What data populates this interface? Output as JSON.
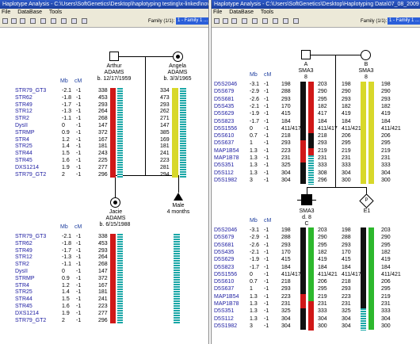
{
  "left": {
    "title": "Haplotype Analysis - C:\\Users\\SoftGenetics\\Desktop\\haplotyping testing\\x-linked\\nov_ped",
    "menu": [
      "File",
      "DataBase",
      "Tools"
    ],
    "family_label": "Family (1/1):",
    "family_value": "1 - Family 1 ...",
    "col_mb": "Mb",
    "col_cm": "cM",
    "father": {
      "name": "Arthur",
      "surname": "ADAMS",
      "dob": "b. 12/17/1959"
    },
    "mother": {
      "name": "Angela",
      "surname": "ADAMS",
      "dob": "b. 3/3/1965"
    },
    "child1": {
      "name": "Jacie",
      "surname": "ADAMS",
      "dob": "b. 6/15/1988"
    },
    "child2": {
      "line1": "Male",
      "line2": "4 months"
    },
    "markers": [
      {
        "name": "STR79_GT3",
        "mb": "-2.1",
        "cm": "-1",
        "f": "338",
        "m": "334",
        "k": "338"
      },
      {
        "name": "STR62",
        "mb": "-1.8",
        "cm": "-1",
        "f": "453",
        "m": "473",
        "k": "453"
      },
      {
        "name": "STR49",
        "mb": "-1.7",
        "cm": "-1",
        "f": "293",
        "m": "293",
        "k": "293"
      },
      {
        "name": "STR12",
        "mb": "-1.3",
        "cm": "-1",
        "f": "264",
        "m": "262",
        "k": "264"
      },
      {
        "name": "STR2",
        "mb": "-1.1",
        "cm": "-1",
        "f": "268",
        "m": "271",
        "k": "268"
      },
      {
        "name": "DysII",
        "mb": "0",
        "cm": "-1",
        "f": "147",
        "m": "147",
        "k": "147"
      },
      {
        "name": "STRMP",
        "mb": "0.9",
        "cm": "-1",
        "f": "372",
        "m": "385",
        "k": "372"
      },
      {
        "name": "STR4",
        "mb": "1.2",
        "cm": "-1",
        "f": "167",
        "m": "169",
        "k": "167"
      },
      {
        "name": "STR25",
        "mb": "1.4",
        "cm": "-1",
        "f": "181",
        "m": "181",
        "k": "181"
      },
      {
        "name": "STR44",
        "mb": "1.5",
        "cm": "-1",
        "f": "243",
        "m": "241",
        "k": "241"
      },
      {
        "name": "STR45",
        "mb": "1.6",
        "cm": "-1",
        "f": "225",
        "m": "223",
        "k": "223"
      },
      {
        "name": "DXS1214",
        "mb": "1.9",
        "cm": "-1",
        "f": "277",
        "m": "281",
        "k": "277"
      },
      {
        "name": "STR79_GT2",
        "mb": "2",
        "cm": "-1",
        "f": "296",
        "m": "294",
        "k": "296"
      }
    ]
  },
  "right": {
    "title": "Haplotype Analysis - C:\\Users\\SoftGenetics\\Desktop\\Haplotyping Data\\07_08_2009 haplotypi",
    "menu": [
      "File",
      "DataBase",
      "Tools"
    ],
    "family_label": "Family (1/1):",
    "family_value": "1 - Family 1 ...",
    "col_mb": "Mb",
    "col_cm": "cM",
    "parentA": {
      "id": "A",
      "label": "SMA3",
      "sub": "8"
    },
    "parentB": {
      "id": "B",
      "label": "SMA3",
      "sub": "8"
    },
    "childC": {
      "id": "C",
      "label": "SMA3",
      "sub": "d. 8"
    },
    "childE": {
      "id": "E1"
    },
    "markers": [
      {
        "name": "D5S2046",
        "mb": "-3.1",
        "cm": "-1",
        "a1": "198",
        "a2": "203",
        "b1": "198",
        "b2": "198",
        "c1": "198",
        "c2": "203",
        "e1": "198",
        "e2": "203"
      },
      {
        "name": "D5S679",
        "mb": "-2.9",
        "cm": "-1",
        "a1": "288",
        "a2": "290",
        "b1": "290",
        "b2": "290",
        "c1": "288",
        "c2": "290",
        "e1": "288",
        "e2": "290"
      },
      {
        "name": "D5S681",
        "mb": "-2.6",
        "cm": "-1",
        "a1": "293",
        "a2": "295",
        "b1": "293",
        "b2": "293",
        "c1": "293",
        "c2": "295",
        "e1": "293",
        "e2": "295"
      },
      {
        "name": "D5S435",
        "mb": "-2.1",
        "cm": "-1",
        "a1": "170",
        "a2": "182",
        "b1": "182",
        "b2": "182",
        "c1": "170",
        "c2": "182",
        "e1": "170",
        "e2": "182"
      },
      {
        "name": "D5S629",
        "mb": "-1.9",
        "cm": "-1",
        "a1": "415",
        "a2": "417",
        "b1": "419",
        "b2": "419",
        "c1": "415",
        "c2": "419",
        "e1": "415",
        "e2": "419"
      },
      {
        "name": "D5S823",
        "mb": "-1.7",
        "cm": "-1",
        "a1": "184",
        "a2": "184",
        "b1": "184",
        "b2": "184",
        "c1": "184",
        "c2": "184",
        "e1": "184",
        "e2": "184"
      },
      {
        "name": "D5S1556",
        "mb": "0",
        "cm": "-1",
        "a1": "411/417",
        "a2": "411/417",
        "b1": "411/421",
        "b2": "411/421",
        "c1": "411/417",
        "c2": "411/421",
        "e1": "411/417",
        "e2": "411/421"
      },
      {
        "name": "D5S610",
        "mb": "0.7",
        "cm": "-1",
        "a1": "218",
        "a2": "218",
        "b1": "206",
        "b2": "206",
        "c1": "218",
        "c2": "206",
        "e1": "218",
        "e2": "206"
      },
      {
        "name": "D5S637",
        "mb": "1",
        "cm": "-1",
        "a1": "293",
        "a2": "293",
        "b1": "295",
        "b2": "295",
        "c1": "293",
        "c2": "295",
        "e1": "293",
        "e2": "295"
      },
      {
        "name": "MAP1B54",
        "mb": "1.3",
        "cm": "-1",
        "a1": "223",
        "a2": "219",
        "b1": "219",
        "b2": "219",
        "c1": "223",
        "c2": "219",
        "e1": "223",
        "e2": "219"
      },
      {
        "name": "MAP1B78",
        "mb": "1.3",
        "cm": "-1",
        "a1": "231",
        "a2": "231",
        "b1": "231",
        "b2": "231",
        "c1": "231",
        "c2": "231",
        "e1": "231",
        "e2": "231"
      },
      {
        "name": "D5S351",
        "mb": "1.3",
        "cm": "-1",
        "a1": "325",
        "a2": "333",
        "b1": "333",
        "b2": "333",
        "c1": "325",
        "c2": "333",
        "e1": "325",
        "e2": "333"
      },
      {
        "name": "D5S112",
        "mb": "1.3",
        "cm": "-1",
        "a1": "304",
        "a2": "308",
        "b1": "304",
        "b2": "304",
        "c1": "304",
        "c2": "304",
        "e1": "304",
        "e2": "304"
      },
      {
        "name": "D5S1982",
        "mb": "3",
        "cm": "-1",
        "a1": "304",
        "a2": "296",
        "b1": "300",
        "b2": "300",
        "c1": "304",
        "c2": "300",
        "e1": "304",
        "e2": "300"
      }
    ]
  },
  "colors": {
    "red": "#d01818",
    "yellow": "#d8d82a",
    "teal": "#1aa7a7",
    "green": "#2db82d",
    "black": "#111111"
  }
}
